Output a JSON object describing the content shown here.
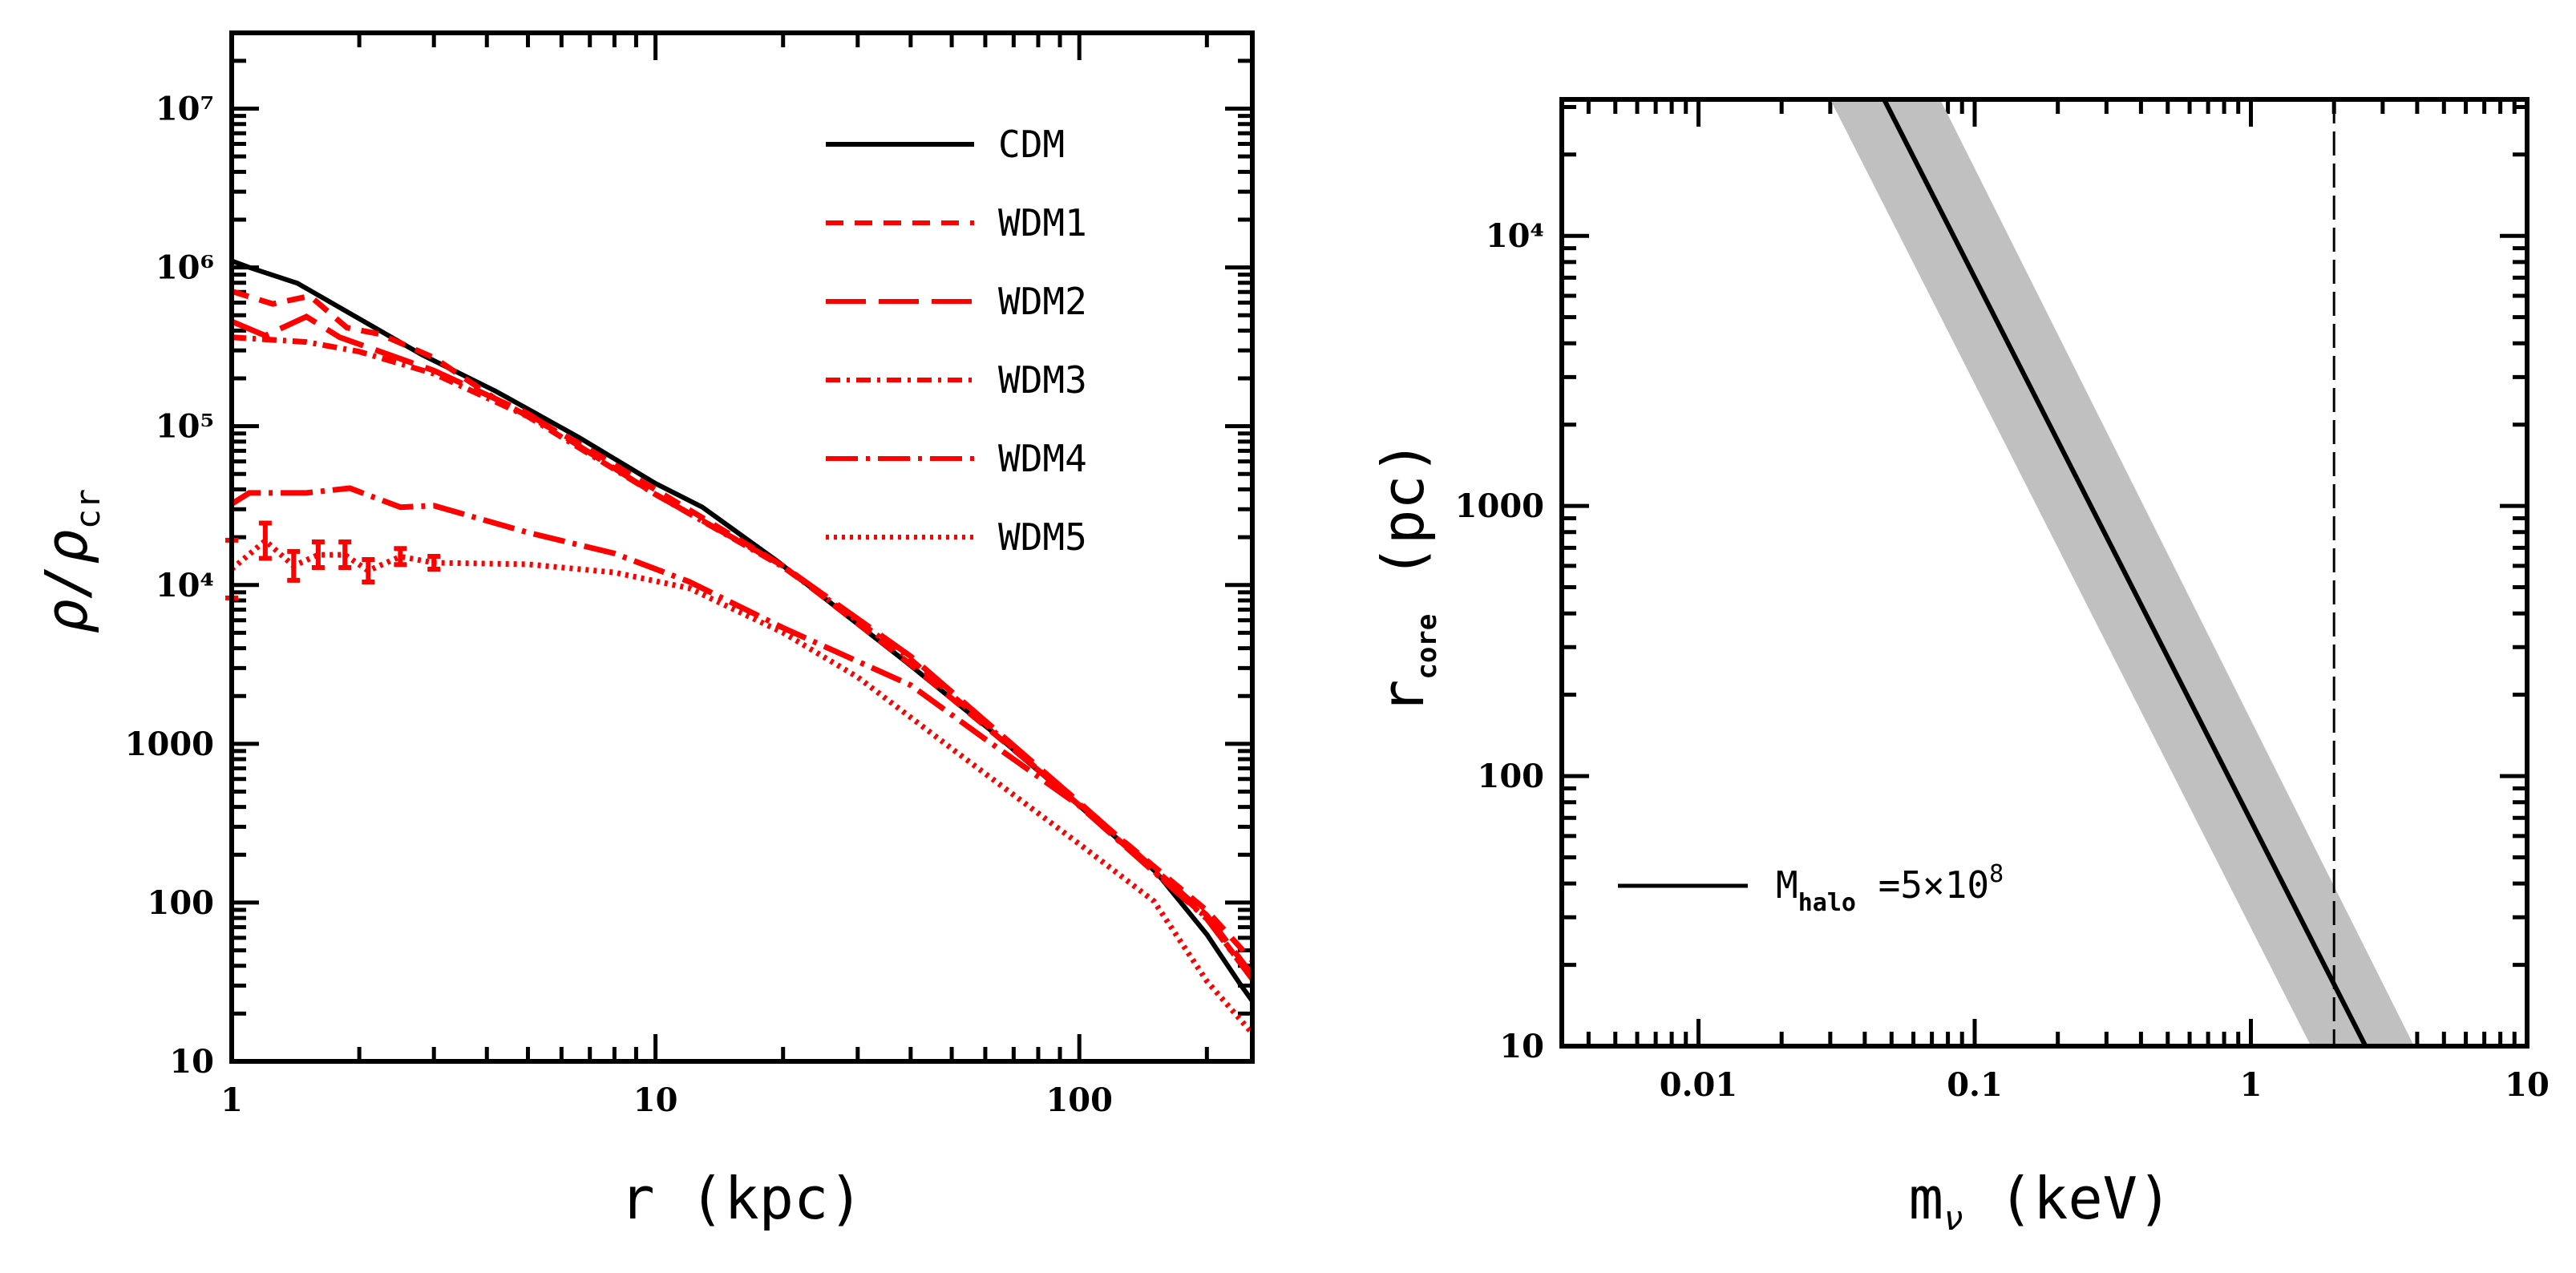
{
  "chart_data": [
    {
      "type": "line",
      "xlabel": "r (kpc)",
      "ylabel_main": "ρ/ρ",
      "ylabel_sub": "cr",
      "xscale": "log",
      "yscale": "log",
      "xlim": [
        1,
        256
      ],
      "ylim": [
        10,
        30000000
      ],
      "xticks": [
        {
          "v": 1,
          "label": "1"
        },
        {
          "v": 10,
          "label": "10"
        },
        {
          "v": 100,
          "label": "100"
        }
      ],
      "yticks": [
        {
          "v": 10,
          "label": "10"
        },
        {
          "v": 100,
          "label": "100"
        },
        {
          "v": 1000,
          "label": "1000"
        },
        {
          "v": 10000,
          "label": "10⁴"
        },
        {
          "v": 100000,
          "label": "10⁵"
        },
        {
          "v": 1000000,
          "label": "10⁶"
        },
        {
          "v": 10000000,
          "label": "10⁷"
        }
      ],
      "legend_position": "top-right",
      "series": [
        {
          "name": "CDM",
          "color": "#000000",
          "dash": "",
          "x": [
            1,
            1.1,
            1.43,
            1.96,
            2.81,
            4.2,
            6.6,
            10,
            12.9,
            19.4,
            25.3,
            39.7,
            62.2,
            100,
            152,
            200,
            239,
            256
          ],
          "y": [
            1100000,
            1000000,
            794000,
            490000,
            282000,
            166000,
            85000,
            43600,
            30900,
            14100,
            8100,
            3160,
            1200,
            407,
            155,
            63,
            31,
            24
          ]
        },
        {
          "name": "WDM1",
          "color": "#ff0000",
          "dash": "22,14",
          "x": [
            1,
            1.25,
            1.53,
            1.87,
            2.24,
            3,
            4.2,
            6.6,
            10,
            20,
            40,
            100,
            200,
            256
          ],
          "y": [
            708000,
            589000,
            661000,
            417000,
            380000,
            270000,
            148000,
            78000,
            39800,
            13200,
            3160,
            417,
            89,
            43
          ]
        },
        {
          "name": "WDM2",
          "color": "#ff0000",
          "dash": "50,16",
          "x": [
            1,
            1.2,
            1.5,
            1.8,
            3,
            5,
            10,
            20,
            40,
            100,
            200,
            256
          ],
          "y": [
            457000,
            372000,
            490000,
            363000,
            224000,
            120000,
            37200,
            13200,
            3550,
            427,
            83,
            35
          ]
        },
        {
          "name": "WDM3",
          "color": "#ff0000",
          "dash": "18,8,4,8",
          "x": [
            1,
            1.5,
            2,
            3,
            5,
            10,
            20,
            40,
            100,
            200,
            256
          ],
          "y": [
            363000,
            339000,
            295000,
            214000,
            115000,
            37200,
            13000,
            3400,
            410,
            80,
            33
          ]
        },
        {
          "name": "WDM4",
          "color": "#ff0000",
          "dash": "40,10,5,10",
          "x": [
            1,
            1.1,
            1.5,
            1.9,
            2.5,
            3,
            5,
            8,
            12,
            20,
            40,
            60,
            100,
            200,
            256
          ],
          "y": [
            32400,
            38000,
            38000,
            40700,
            30900,
            31600,
            21400,
            15800,
            10500,
            5370,
            2340,
            1070,
            407,
            79,
            33
          ]
        },
        {
          "name": "WDM5",
          "color": "#ff0000",
          "dash": "4,6",
          "x": [
            1,
            1.2,
            1.4,
            1.6,
            1.85,
            2.1,
            2.5,
            3,
            5,
            8,
            12,
            20,
            30,
            50,
            100,
            150,
            200,
            256
          ],
          "y": [
            12600,
            19000,
            13200,
            15500,
            15500,
            12300,
            15100,
            13800,
            13500,
            12000,
            9550,
            5010,
            2630,
            933,
            234,
            102,
            32,
            15
          ]
        }
      ]
    },
    {
      "type": "line",
      "xlabel_main": "m",
      "xlabel_sub": "ν",
      "xlabel_rest": " (keV)",
      "ylabel_main": "r",
      "ylabel_sub": "core",
      "ylabel_rest": " (pc)",
      "xscale": "log",
      "yscale": "log",
      "xlim": [
        0.0032,
        10
      ],
      "ylim": [
        10,
        32000
      ],
      "xticks": [
        {
          "v": 0.01,
          "label": "0.01"
        },
        {
          "v": 0.1,
          "label": "0.1"
        },
        {
          "v": 1,
          "label": "1"
        },
        {
          "v": 10,
          "label": "10"
        }
      ],
      "yticks": [
        {
          "v": 10,
          "label": "10"
        },
        {
          "v": 100,
          "label": "100"
        },
        {
          "v": 1000,
          "label": "1000"
        },
        {
          "v": 10000,
          "label": "10⁴"
        }
      ],
      "legend_position": "bottom-left",
      "series": [
        {
          "name_main": "M",
          "name_sub": "halo",
          "name_rest": " =5×10",
          "name_sup": "8",
          "color": "#000000",
          "x": [
            0.047,
            2.6
          ],
          "y": [
            32000,
            10
          ]
        }
      ],
      "band": {
        "color": "#c0c0c0",
        "lower_x": [
          0.03,
          1.65
        ],
        "upper_x": [
          0.075,
          3.9
        ],
        "y": [
          32000,
          10
        ]
      },
      "vline": {
        "x": 2,
        "dash": "30,10"
      }
    }
  ]
}
